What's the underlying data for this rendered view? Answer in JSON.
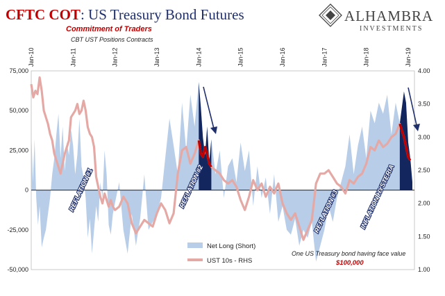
{
  "title": {
    "part1": "CFTC COT",
    "part2": ": US Treasury Bond Futures"
  },
  "subtitle": "Commitment of Traders",
  "subtitle2": "CBT UST Positions Contracts",
  "brand": {
    "name": "ALHAMBRA",
    "sub": "INVESTMENTS"
  },
  "colors": {
    "net_long": "#b8cde8",
    "net_long_highlight": "#13265e",
    "yield": "#e5a9a5",
    "yield_highlight": "#c00000",
    "arrow": "#1f2f6b"
  },
  "chart_data": {
    "type": "area",
    "x_ticks": [
      "Jan-10",
      "Jan-11",
      "Jan-12",
      "Jan-13",
      "Jan-14",
      "Jan-15",
      "Jan-16",
      "Jan-17",
      "Jan-18",
      "Jan-19"
    ],
    "y_left": {
      "ticks": [
        "75,000",
        "50,000",
        "25,000",
        "0",
        "-25,000",
        "-50,000"
      ],
      "range": [
        -50000,
        75000
      ]
    },
    "y_right": {
      "ticks": [
        "4.00",
        "3.50",
        "3.00",
        "2.50",
        "2.00",
        "1.50",
        "1.00"
      ],
      "range": [
        1.0,
        4.0
      ]
    },
    "grid": false,
    "legend_position": "bottom-center",
    "series": [
      {
        "name": "Net Long (Short)",
        "axis": "left",
        "style": "area",
        "x": [
          2010.0,
          2010.04,
          2010.08,
          2010.12,
          2010.16,
          2010.2,
          2010.25,
          2010.3,
          2010.35,
          2010.4,
          2010.45,
          2010.5,
          2010.55,
          2010.6,
          2010.65,
          2010.7,
          2010.75,
          2010.8,
          2010.85,
          2010.9,
          2010.95,
          2011.0,
          2011.05,
          2011.1,
          2011.15,
          2011.2,
          2011.25,
          2011.3,
          2011.35,
          2011.4,
          2011.45,
          2011.5,
          2011.55,
          2011.6,
          2011.65,
          2011.7,
          2011.75,
          2011.8,
          2011.85,
          2011.9,
          2011.95,
          2012.0,
          2012.1,
          2012.2,
          2012.3,
          2012.4,
          2012.5,
          2012.6,
          2012.7,
          2012.8,
          2012.9,
          2013.0,
          2013.1,
          2013.2,
          2013.3,
          2013.4,
          2013.5,
          2013.6,
          2013.7,
          2013.8,
          2013.9,
          2014.0,
          2014.05,
          2014.1,
          2014.15,
          2014.2,
          2014.25,
          2014.3,
          2014.4,
          2014.5,
          2014.6,
          2014.7,
          2014.8,
          2014.9,
          2015.0,
          2015.1,
          2015.2,
          2015.3,
          2015.4,
          2015.5,
          2015.6,
          2015.7,
          2015.8,
          2015.9,
          2016.0,
          2016.1,
          2016.2,
          2016.3,
          2016.4,
          2016.5,
          2016.6,
          2016.7,
          2016.8,
          2016.9,
          2017.0,
          2017.1,
          2017.2,
          2017.3,
          2017.4,
          2017.5,
          2017.6,
          2017.7,
          2017.8,
          2017.9,
          2018.0,
          2018.1,
          2018.2,
          2018.3,
          2018.4,
          2018.5,
          2018.6,
          2018.7,
          2018.8,
          2018.9,
          2018.95,
          2019.0,
          2019.05,
          2019.1
        ],
        "y": [
          38000,
          5000,
          32000,
          -5000,
          -22000,
          -10000,
          -36000,
          -30000,
          -25000,
          -15000,
          -5000,
          10000,
          20000,
          35000,
          48000,
          20000,
          40000,
          12000,
          30000,
          22000,
          38000,
          28000,
          10000,
          22000,
          45000,
          15000,
          8000,
          -5000,
          -30000,
          -18000,
          -40000,
          -25000,
          -10000,
          -20000,
          5000,
          -5000,
          25000,
          10000,
          -22000,
          -28000,
          -15000,
          -8000,
          5000,
          -25000,
          -40000,
          -15000,
          -35000,
          -18000,
          10000,
          -25000,
          -20000,
          -15000,
          -5000,
          20000,
          45000,
          28000,
          10000,
          55000,
          25000,
          60000,
          40000,
          68000,
          52000,
          33000,
          22000,
          40000,
          18000,
          32000,
          10000,
          25000,
          -5000,
          15000,
          20000,
          5000,
          30000,
          12000,
          25000,
          -10000,
          15000,
          -5000,
          8000,
          -15000,
          10000,
          -20000,
          -10000,
          -25000,
          -28000,
          -18000,
          -35000,
          -25000,
          -30000,
          -20000,
          -45000,
          -35000,
          -25000,
          -10000,
          -20000,
          -5000,
          5000,
          15000,
          35000,
          10000,
          28000,
          40000,
          20000,
          50000,
          42000,
          55000,
          48000,
          60000,
          35000,
          55000,
          42000,
          62000,
          55000,
          30000,
          20000,
          5000
        ]
      },
      {
        "name": "UST 10s - RHS",
        "axis": "right",
        "style": "line",
        "x": [
          2010.0,
          2010.05,
          2010.1,
          2010.15,
          2010.2,
          2010.25,
          2010.3,
          2010.35,
          2010.4,
          2010.45,
          2010.5,
          2010.55,
          2010.6,
          2010.65,
          2010.7,
          2010.75,
          2010.8,
          2010.85,
          2010.9,
          2010.95,
          2011.0,
          2011.05,
          2011.1,
          2011.15,
          2011.2,
          2011.25,
          2011.3,
          2011.35,
          2011.4,
          2011.45,
          2011.5,
          2011.55,
          2011.6,
          2011.65,
          2011.7,
          2011.75,
          2011.8,
          2011.85,
          2011.9,
          2011.95,
          2012.0,
          2012.1,
          2012.2,
          2012.3,
          2012.4,
          2012.5,
          2012.6,
          2012.7,
          2012.8,
          2012.9,
          2013.0,
          2013.1,
          2013.2,
          2013.3,
          2013.4,
          2013.5,
          2013.6,
          2013.7,
          2013.8,
          2013.9,
          2014.0,
          2014.05,
          2014.1,
          2014.15,
          2014.2,
          2014.25,
          2014.3,
          2014.4,
          2014.5,
          2014.6,
          2014.7,
          2014.8,
          2014.9,
          2015.0,
          2015.1,
          2015.2,
          2015.3,
          2015.4,
          2015.5,
          2015.6,
          2015.7,
          2015.8,
          2015.9,
          2016.0,
          2016.1,
          2016.2,
          2016.3,
          2016.4,
          2016.5,
          2016.6,
          2016.7,
          2016.8,
          2016.9,
          2017.0,
          2017.1,
          2017.2,
          2017.3,
          2017.4,
          2017.5,
          2017.6,
          2017.7,
          2017.8,
          2017.9,
          2018.0,
          2018.1,
          2018.2,
          2018.3,
          2018.4,
          2018.5,
          2018.6,
          2018.7,
          2018.8,
          2018.85,
          2018.9,
          2018.95,
          2019.0,
          2019.05
        ],
        "y": [
          3.8,
          3.6,
          3.7,
          3.65,
          3.9,
          3.7,
          3.4,
          3.3,
          3.2,
          3.05,
          2.95,
          2.75,
          2.65,
          2.55,
          2.45,
          2.6,
          2.75,
          2.85,
          2.95,
          3.3,
          3.35,
          3.4,
          3.5,
          3.35,
          3.4,
          3.55,
          3.4,
          3.15,
          3.05,
          3.0,
          2.85,
          2.4,
          2.25,
          2.1,
          2.0,
          2.15,
          2.05,
          1.95,
          2.05,
          1.95,
          1.9,
          1.95,
          2.1,
          2.0,
          1.7,
          1.55,
          1.65,
          1.75,
          1.7,
          1.65,
          1.85,
          2.0,
          1.9,
          1.7,
          1.85,
          2.45,
          2.8,
          2.85,
          2.6,
          2.75,
          2.95,
          2.75,
          2.7,
          2.85,
          2.75,
          2.6,
          2.55,
          2.5,
          2.45,
          2.35,
          2.3,
          2.35,
          2.25,
          2.05,
          1.9,
          2.1,
          2.35,
          2.2,
          2.3,
          2.1,
          2.25,
          2.15,
          2.3,
          2.0,
          1.85,
          1.75,
          1.85,
          1.65,
          1.45,
          1.6,
          1.75,
          2.3,
          2.45,
          2.45,
          2.5,
          2.4,
          2.3,
          2.25,
          2.15,
          2.35,
          2.3,
          2.4,
          2.45,
          2.6,
          2.85,
          2.8,
          2.95,
          2.85,
          2.9,
          3.0,
          3.05,
          3.2,
          3.1,
          3.0,
          2.85,
          2.7,
          2.65
        ]
      }
    ],
    "highlights": [
      {
        "x_start": 2013.95,
        "x_end": 2014.35,
        "description_hidden": true
      },
      {
        "x_start": 2018.8,
        "x_end": 2019.1,
        "description_hidden": true
      }
    ],
    "annotations": [
      "REFLATION #1",
      "REFLATION #2",
      "REFLATION #3",
      "INFLATION HYSTERIA"
    ],
    "legend": [
      "Net Long (Short)",
      "UST 10s - RHS"
    ],
    "note": "One US Treasury bond having face value",
    "note_value": "$100,000"
  }
}
